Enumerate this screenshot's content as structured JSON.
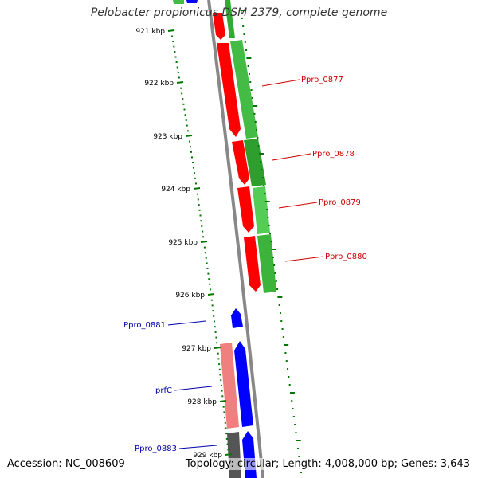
{
  "title": "Pelobacter propionicus DSM 2379, complete genome",
  "footer": {
    "accession": "Accession: NC_008609",
    "summary": "Topology: circular; Length: 4,008,000 bp; Genes: 3,643"
  },
  "colors": {
    "forward_cds": "#ff0000",
    "forward_cds_light": "#f08080",
    "reverse_cds": "#0000ff",
    "gc_content": "#33aa33",
    "tick": "#007700",
    "backbone": "#888888",
    "forward_label": "#cc0000",
    "reverse_label": "#0000aa"
  },
  "ticks": [
    "921 kbp",
    "922 kbp",
    "923 kbp",
    "924 kbp",
    "925 kbp",
    "926 kbp",
    "927 kbp",
    "928 kbp",
    "929 kbp"
  ],
  "gene_labels": [
    {
      "name": "Ppro_0877",
      "strand": "forward"
    },
    {
      "name": "Ppro_0878",
      "strand": "forward"
    },
    {
      "name": "Ppro_0879",
      "strand": "forward"
    },
    {
      "name": "Ppro_0880",
      "strand": "forward"
    },
    {
      "name": "Ppro_0881",
      "strand": "reverse"
    },
    {
      "name": "prfC",
      "strand": "reverse"
    },
    {
      "name": "Ppro_0883",
      "strand": "reverse"
    }
  ]
}
